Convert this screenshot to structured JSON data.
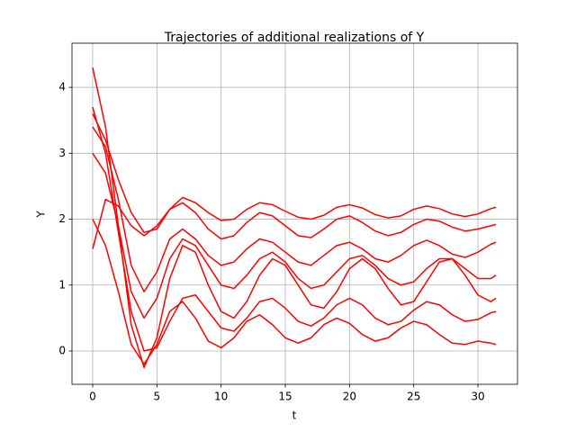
{
  "chart_data": {
    "type": "line",
    "title": "Trajectories of additional realizations of Y",
    "xlabel": "t",
    "ylabel": "Y",
    "x": [
      0,
      1,
      2,
      3,
      4,
      5,
      6,
      7,
      8,
      9,
      10,
      11,
      12,
      13,
      14,
      15,
      16,
      17,
      18,
      19,
      20,
      21,
      22,
      23,
      24,
      25,
      26,
      27,
      28,
      29,
      30,
      31,
      31.4
    ],
    "series": [
      {
        "color": "#ff0000",
        "values": [
          3.6,
          3.2,
          2.6,
          2.1,
          1.8,
          1.85,
          2.15,
          2.33,
          2.25,
          2.1,
          1.98,
          2.0,
          2.15,
          2.25,
          2.22,
          2.12,
          2.03,
          2.0,
          2.06,
          2.18,
          2.22,
          2.17,
          2.07,
          2.02,
          2.05,
          2.15,
          2.2,
          2.16,
          2.08,
          2.04,
          2.08,
          2.16,
          2.18
        ]
      },
      {
        "color": "#ff0000",
        "values": [
          4.3,
          3.4,
          1.9,
          0.4,
          -0.25,
          0.2,
          1.1,
          1.6,
          1.5,
          1.0,
          0.6,
          0.5,
          0.75,
          1.15,
          1.4,
          1.3,
          1.0,
          0.7,
          0.65,
          0.9,
          1.25,
          1.4,
          1.25,
          0.95,
          0.7,
          0.75,
          1.05,
          1.35,
          1.4,
          1.15,
          0.85,
          0.75,
          0.8
        ]
      },
      {
        "color": "#ff0000",
        "values": [
          2.0,
          1.6,
          0.9,
          0.1,
          -0.2,
          0.1,
          0.6,
          0.75,
          0.5,
          0.15,
          0.05,
          0.2,
          0.45,
          0.55,
          0.4,
          0.2,
          0.12,
          0.2,
          0.4,
          0.5,
          0.42,
          0.25,
          0.15,
          0.2,
          0.35,
          0.45,
          0.4,
          0.25,
          0.12,
          0.1,
          0.15,
          0.12,
          0.1
        ]
      },
      {
        "color": "#ff0000",
        "values": [
          3.0,
          2.7,
          1.9,
          0.9,
          0.5,
          0.8,
          1.4,
          1.7,
          1.6,
          1.3,
          1.0,
          0.95,
          1.15,
          1.4,
          1.5,
          1.35,
          1.1,
          0.95,
          1.0,
          1.2,
          1.4,
          1.45,
          1.3,
          1.1,
          1.0,
          1.05,
          1.25,
          1.4,
          1.4,
          1.25,
          1.1,
          1.1,
          1.15
        ]
      },
      {
        "color": "#ff0000",
        "values": [
          1.55,
          2.3,
          2.2,
          1.9,
          1.75,
          1.9,
          2.15,
          2.25,
          2.1,
          1.85,
          1.7,
          1.75,
          1.95,
          2.1,
          2.05,
          1.9,
          1.75,
          1.72,
          1.85,
          2.0,
          2.05,
          1.95,
          1.82,
          1.75,
          1.8,
          1.92,
          2.0,
          1.97,
          1.88,
          1.82,
          1.85,
          1.9,
          1.92
        ]
      },
      {
        "color": "#ff0000",
        "values": [
          3.7,
          3.0,
          1.8,
          0.6,
          0.0,
          0.05,
          0.45,
          0.8,
          0.85,
          0.6,
          0.35,
          0.3,
          0.5,
          0.75,
          0.8,
          0.65,
          0.45,
          0.38,
          0.5,
          0.7,
          0.8,
          0.7,
          0.5,
          0.4,
          0.45,
          0.62,
          0.75,
          0.7,
          0.55,
          0.45,
          0.48,
          0.58,
          0.6
        ]
      },
      {
        "color": "#ff0000",
        "values": [
          3.4,
          3.1,
          2.3,
          1.3,
          0.9,
          1.2,
          1.7,
          1.85,
          1.7,
          1.45,
          1.3,
          1.35,
          1.55,
          1.7,
          1.65,
          1.5,
          1.35,
          1.3,
          1.45,
          1.6,
          1.65,
          1.55,
          1.4,
          1.35,
          1.45,
          1.6,
          1.68,
          1.6,
          1.47,
          1.42,
          1.5,
          1.62,
          1.65
        ]
      }
    ],
    "xlim": [
      -1.61,
      33.08
    ],
    "ylim": [
      -0.505,
      4.67
    ],
    "xticks": [
      0,
      5,
      10,
      15,
      20,
      25,
      30
    ],
    "yticks": [
      0,
      1,
      2,
      3,
      4
    ],
    "grid": true
  }
}
